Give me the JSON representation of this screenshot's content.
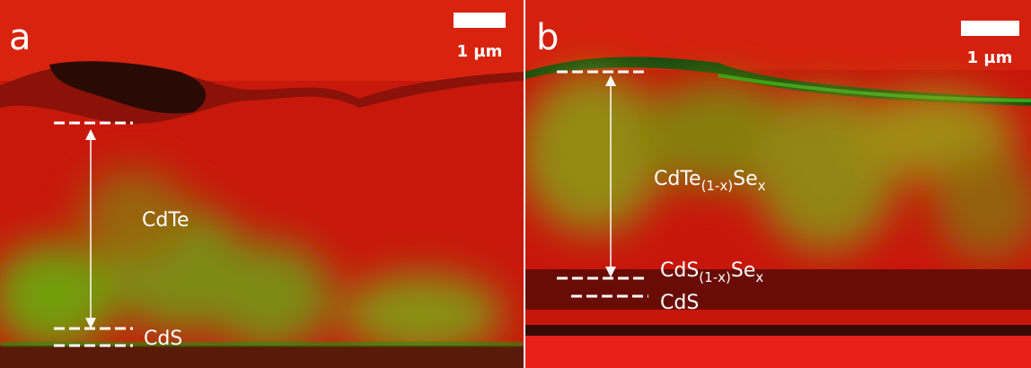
{
  "panels": [
    {
      "label": "a",
      "scale_bar": "1 µm",
      "layers": [
        {
          "parts": [
            "CdTe"
          ]
        },
        {
          "parts": [
            "CdS"
          ]
        }
      ]
    },
    {
      "label": "b",
      "scale_bar": "1 µm",
      "layers": [
        {
          "parts": [
            "CdTe",
            "(1-x)",
            "Se",
            "x"
          ]
        },
        {
          "parts": [
            "CdS",
            "(1-x)",
            "Se",
            "x"
          ]
        },
        {
          "parts": [
            "CdS"
          ]
        }
      ]
    }
  ]
}
